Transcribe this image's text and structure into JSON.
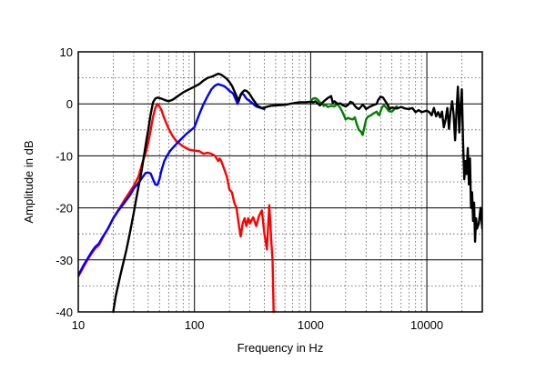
{
  "chart_data": {
    "type": "line",
    "xlabel": "Frequency in Hz",
    "ylabel": "Amplitude in dB",
    "xscale": "log",
    "xlim": [
      10,
      30000
    ],
    "ylim": [
      -40,
      10
    ],
    "grid": true,
    "x_ticks": [
      {
        "value": 10,
        "label": "10"
      },
      {
        "value": 100,
        "label": "100"
      },
      {
        "value": 1000,
        "label": "1000"
      },
      {
        "value": 10000,
        "label": "10000"
      }
    ],
    "y_ticks": [
      {
        "value": 10,
        "label": "10"
      },
      {
        "value": 0,
        "label": "0"
      },
      {
        "value": -10,
        "label": "-10"
      },
      {
        "value": -20,
        "label": "-20"
      },
      {
        "value": -30,
        "label": "-30"
      },
      {
        "value": -40,
        "label": "-40"
      }
    ],
    "series": [
      {
        "color": "#ff0000",
        "points": [
          [
            10,
            -33.2
          ],
          [
            11,
            -31.5
          ],
          [
            12,
            -30
          ],
          [
            13,
            -28.8
          ],
          [
            14,
            -27.8
          ],
          [
            15,
            -27.2
          ],
          [
            16,
            -26
          ],
          [
            18,
            -24
          ],
          [
            20,
            -22
          ],
          [
            22,
            -20.5
          ],
          [
            25,
            -18.5
          ],
          [
            28,
            -16.8
          ],
          [
            30,
            -15.8
          ],
          [
            33,
            -14
          ],
          [
            36,
            -11
          ],
          [
            38,
            -9.5
          ],
          [
            40,
            -7.5
          ],
          [
            42,
            -5
          ],
          [
            44,
            -2.5
          ],
          [
            46,
            -0.8
          ],
          [
            48,
            0
          ],
          [
            50,
            -0.5
          ],
          [
            52,
            -1.2
          ],
          [
            55,
            -2.8
          ],
          [
            60,
            -4.8
          ],
          [
            65,
            -6.2
          ],
          [
            70,
            -7.2
          ],
          [
            80,
            -8.2
          ],
          [
            90,
            -8.8
          ],
          [
            100,
            -9
          ],
          [
            110,
            -9.1
          ],
          [
            120,
            -9.6
          ],
          [
            130,
            -9.4
          ],
          [
            140,
            -9.6
          ],
          [
            150,
            -10
          ],
          [
            160,
            -11
          ],
          [
            165,
            -10.5
          ],
          [
            170,
            -11
          ],
          [
            180,
            -12.5
          ],
          [
            190,
            -14
          ],
          [
            200,
            -16.5
          ],
          [
            210,
            -17
          ],
          [
            220,
            -19
          ],
          [
            230,
            -20
          ],
          [
            240,
            -23
          ],
          [
            250,
            -25.5
          ],
          [
            260,
            -23
          ],
          [
            270,
            -22
          ],
          [
            280,
            -23.5
          ],
          [
            290,
            -22
          ],
          [
            300,
            -23
          ],
          [
            320,
            -21.8
          ],
          [
            340,
            -23.5
          ],
          [
            360,
            -21.5
          ],
          [
            380,
            -20.5
          ],
          [
            400,
            -25
          ],
          [
            420,
            -28
          ],
          [
            440,
            -19.5
          ],
          [
            450,
            -23
          ],
          [
            460,
            -27
          ],
          [
            470,
            -30
          ],
          [
            480,
            -40
          ]
        ]
      },
      {
        "color": "#0000ff",
        "points": [
          [
            10,
            -33
          ],
          [
            11,
            -31.2
          ],
          [
            12,
            -29.8
          ],
          [
            13,
            -28.5
          ],
          [
            14,
            -27.5
          ],
          [
            15,
            -26.9
          ],
          [
            16,
            -25.8
          ],
          [
            18,
            -24
          ],
          [
            20,
            -22
          ],
          [
            22,
            -20.6
          ],
          [
            25,
            -19
          ],
          [
            28,
            -17.5
          ],
          [
            30,
            -16.3
          ],
          [
            33,
            -15.2
          ],
          [
            36,
            -14
          ],
          [
            38,
            -13.3
          ],
          [
            40,
            -13.2
          ],
          [
            42,
            -13.4
          ],
          [
            44,
            -14.5
          ],
          [
            46,
            -15.5
          ],
          [
            48,
            -15.6
          ],
          [
            50,
            -14.5
          ],
          [
            52,
            -12.8
          ],
          [
            55,
            -11
          ],
          [
            58,
            -10
          ],
          [
            62,
            -9
          ],
          [
            68,
            -8
          ],
          [
            75,
            -7
          ],
          [
            85,
            -5.8
          ],
          [
            100,
            -4.5
          ],
          [
            110,
            -2
          ],
          [
            120,
            0
          ],
          [
            130,
            1.5
          ],
          [
            140,
            2.8
          ],
          [
            150,
            3.5
          ],
          [
            160,
            3.8
          ],
          [
            170,
            3.6
          ],
          [
            180,
            3.4
          ],
          [
            190,
            3
          ],
          [
            200,
            2.5
          ],
          [
            215,
            2
          ],
          [
            225,
            1
          ],
          [
            235,
            0
          ],
          [
            245,
            1.2
          ],
          [
            255,
            2
          ],
          [
            265,
            1.8
          ],
          [
            280,
            1
          ],
          [
            300,
            0.5
          ],
          [
            340,
            -0.5
          ],
          [
            400,
            -1
          ]
        ]
      },
      {
        "color": "#008000",
        "points": [
          [
            1000,
            0.5
          ],
          [
            1050,
            1
          ],
          [
            1100,
            1.1
          ],
          [
            1150,
            0.8
          ],
          [
            1200,
            0.3
          ],
          [
            1250,
            0
          ],
          [
            1300,
            -0.4
          ],
          [
            1350,
            -0.2
          ],
          [
            1400,
            -0.6
          ],
          [
            1500,
            -0.4
          ],
          [
            1600,
            -0.5
          ],
          [
            1700,
            0
          ],
          [
            1800,
            -0.8
          ],
          [
            1900,
            -1.8
          ],
          [
            2000,
            -3
          ],
          [
            2100,
            -2.7
          ],
          [
            2200,
            -2.9
          ],
          [
            2300,
            -3
          ],
          [
            2400,
            -2.6
          ],
          [
            2500,
            -4
          ],
          [
            2600,
            -5
          ],
          [
            2700,
            -5.3
          ],
          [
            2800,
            -6
          ],
          [
            2900,
            -4.5
          ],
          [
            3000,
            -3
          ],
          [
            3100,
            -2.5
          ],
          [
            3300,
            -2.2
          ],
          [
            3500,
            -1.8
          ],
          [
            3700,
            -1.5
          ],
          [
            3800,
            -2
          ],
          [
            3900,
            -2.2
          ],
          [
            4000,
            -1.4
          ],
          [
            4100,
            -0.8
          ],
          [
            4200,
            -0.4
          ],
          [
            4300,
            -0.3
          ],
          [
            4500,
            -0.8
          ],
          [
            4700,
            -1.4
          ],
          [
            5000,
            -1.5
          ],
          [
            5200,
            -1.1
          ],
          [
            5500,
            -0.5
          ]
        ]
      },
      {
        "color": "#000000",
        "points": [
          [
            20,
            -40
          ],
          [
            21,
            -37
          ],
          [
            23,
            -33
          ],
          [
            26,
            -28
          ],
          [
            28,
            -24.5
          ],
          [
            30,
            -21
          ],
          [
            32,
            -17.5
          ],
          [
            35,
            -13
          ],
          [
            38,
            -8
          ],
          [
            40,
            -5
          ],
          [
            42,
            -2
          ],
          [
            44,
            0.3
          ],
          [
            46,
            1
          ],
          [
            48,
            1.2
          ],
          [
            52,
            1
          ],
          [
            56,
            0.7
          ],
          [
            60,
            0.5
          ],
          [
            65,
            0.8
          ],
          [
            70,
            1.3
          ],
          [
            80,
            2.2
          ],
          [
            90,
            2.8
          ],
          [
            100,
            3.3
          ],
          [
            110,
            3.8
          ],
          [
            120,
            4.5
          ],
          [
            130,
            5
          ],
          [
            140,
            5.2
          ],
          [
            150,
            5.5
          ],
          [
            160,
            5.8
          ],
          [
            170,
            5.6
          ],
          [
            180,
            5.2
          ],
          [
            190,
            4.8
          ],
          [
            200,
            4.2
          ],
          [
            210,
            3.5
          ],
          [
            220,
            2.5
          ],
          [
            230,
            1.5
          ],
          [
            240,
            0.5
          ],
          [
            250,
            1.8
          ],
          [
            260,
            2.3
          ],
          [
            270,
            2.6
          ],
          [
            280,
            2.5
          ],
          [
            290,
            2.2
          ],
          [
            300,
            1.8
          ],
          [
            320,
            0.8
          ],
          [
            350,
            -0.4
          ],
          [
            380,
            -0.8
          ],
          [
            400,
            -0.7
          ],
          [
            450,
            -0.4
          ],
          [
            500,
            -0.3
          ],
          [
            600,
            -0.2
          ],
          [
            700,
            0.1
          ],
          [
            800,
            0.3
          ],
          [
            900,
            0.3
          ],
          [
            1000,
            0.4
          ],
          [
            1050,
            0.3
          ],
          [
            1100,
            0.5
          ],
          [
            1200,
            -0.3
          ],
          [
            1300,
            0.5
          ],
          [
            1400,
            1.1
          ],
          [
            1500,
            1.5
          ],
          [
            1550,
            0.2
          ],
          [
            1600,
            0.5
          ],
          [
            1700,
            0
          ],
          [
            1800,
            0.1
          ],
          [
            1900,
            -0.3
          ],
          [
            2000,
            -0.5
          ],
          [
            2100,
            -0.2
          ],
          [
            2200,
            0.4
          ],
          [
            2300,
            0.2
          ],
          [
            2400,
            -0.4
          ],
          [
            2500,
            -0.8
          ],
          [
            2600,
            -1
          ],
          [
            2700,
            -0.6
          ],
          [
            2800,
            -0.2
          ],
          [
            2900,
            -0.5
          ],
          [
            3000,
            -1
          ],
          [
            3200,
            -0.6
          ],
          [
            3500,
            -0.2
          ],
          [
            3700,
            0
          ],
          [
            3800,
            0.7
          ],
          [
            4000,
            1.4
          ],
          [
            4200,
            1.2
          ],
          [
            4400,
            0.5
          ],
          [
            4600,
            -0.2
          ],
          [
            4800,
            -1
          ],
          [
            5000,
            -0.7
          ],
          [
            5500,
            -0.9
          ],
          [
            6000,
            -0.6
          ],
          [
            6500,
            -0.9
          ],
          [
            7000,
            -1
          ],
          [
            7500,
            -0.8
          ],
          [
            8000,
            -1.6
          ],
          [
            8500,
            -1.2
          ],
          [
            9000,
            -1.6
          ],
          [
            10000,
            -1.3
          ],
          [
            10500,
            -1.6
          ],
          [
            11000,
            -2.2
          ],
          [
            11500,
            -0.8
          ],
          [
            12000,
            -2.4
          ],
          [
            12500,
            -1.6
          ],
          [
            13000,
            -2.6
          ],
          [
            13500,
            -1.5
          ],
          [
            14000,
            -4.5
          ],
          [
            14500,
            -3
          ],
          [
            15000,
            -0.8
          ],
          [
            15500,
            -4.8
          ],
          [
            16000,
            -1.4
          ],
          [
            16500,
            0.5
          ],
          [
            17000,
            -2
          ],
          [
            17500,
            -7
          ],
          [
            18000,
            -1.5
          ],
          [
            18500,
            3.3
          ],
          [
            19000,
            -5.5
          ],
          [
            19500,
            -0.5
          ],
          [
            20000,
            2.8
          ],
          [
            20500,
            -7.5
          ],
          [
            21000,
            -14.5
          ],
          [
            21500,
            -11
          ],
          [
            22000,
            -13.5
          ],
          [
            22500,
            -8.5
          ],
          [
            23000,
            -15.5
          ],
          [
            23500,
            -10.5
          ],
          [
            24000,
            -20
          ],
          [
            24500,
            -17
          ],
          [
            25000,
            -22.5
          ],
          [
            25500,
            -19
          ],
          [
            26000,
            -26.5
          ],
          [
            26500,
            -22
          ],
          [
            27000,
            -24
          ],
          [
            28000,
            -23
          ],
          [
            29000,
            -20
          ],
          [
            30000,
            -24
          ]
        ]
      }
    ]
  }
}
